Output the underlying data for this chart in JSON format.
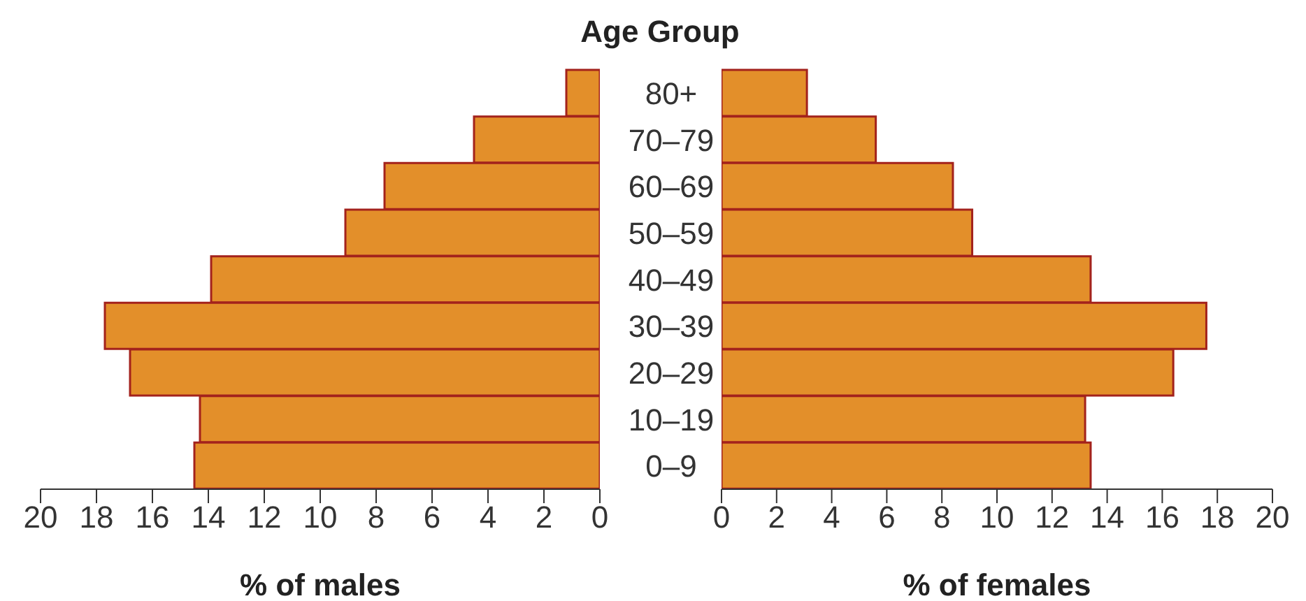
{
  "chart_data": [
    {
      "type": "bar",
      "orientation": "horizontal",
      "ylabel": "Age Group",
      "xlabel": "% of males",
      "categories": [
        "80+",
        "70–79",
        "60–69",
        "50–59",
        "40–49",
        "30–39",
        "20–29",
        "10–19",
        "0–9"
      ],
      "values": [
        1.2,
        4.5,
        7.7,
        9.1,
        13.9,
        17.7,
        16.8,
        14.3,
        14.5
      ],
      "color": "#e38f2a",
      "xlim": [
        20,
        0
      ],
      "xticks": [
        20,
        18,
        16,
        14,
        12,
        10,
        8,
        6,
        4,
        2,
        0
      ],
      "grid": false,
      "legend": false
    },
    {
      "type": "bar",
      "orientation": "horizontal",
      "xlabel": "% of females",
      "categories": [
        null,
        null,
        null,
        null,
        null,
        null,
        null,
        null,
        null
      ],
      "values": [
        3.1,
        5.6,
        8.4,
        9.1,
        13.4,
        17.6,
        16.4,
        13.2,
        13.4
      ],
      "color": "#e38f2a",
      "xlim": [
        0,
        20
      ],
      "xticks": [
        0,
        2,
        4,
        6,
        8,
        10,
        12,
        14,
        16,
        18,
        20
      ],
      "tick_labels": "x",
      "grid": false,
      "legend": false
    }
  ]
}
